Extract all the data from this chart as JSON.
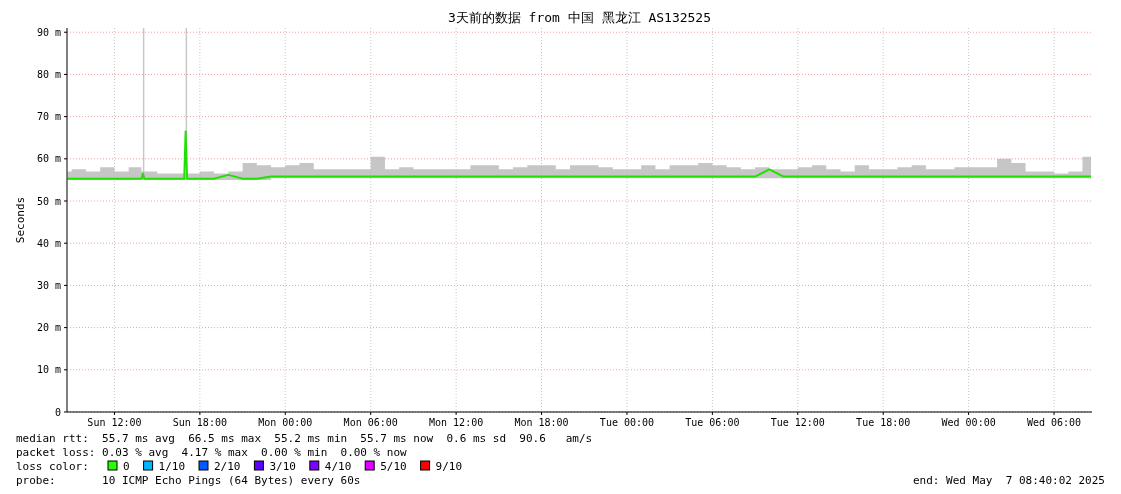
{
  "chart_data": {
    "type": "line",
    "title": "3天前的数据 from 中国 黑龙江 AS132525",
    "ylabel": "Seconds",
    "annotations": [
      "median rtt:  55.7 ms avg  66.5 ms max  55.2 ms min  55.7 ms now  0.6 ms sd  90.6   am/s",
      "packet loss: 0.03 % avg  4.17 % max  0.00 % min  0.00 % now",
      "loss color:",
      "0",
      "1/10",
      "2/10",
      "3/10",
      "4/10",
      "5/10",
      "9/10",
      "probe:       10 ICMP Echo Pings (64 Bytes) every 60s",
      "end: Wed May  7 08:40:02 2025"
    ],
    "x": [
      "2025-05-04T08:42",
      "2025-05-04T09:00",
      "2025-05-04T10:00",
      "2025-05-04T11:00",
      "2025-05-04T12:00",
      "2025-05-04T13:00",
      "2025-05-04T13:54",
      "2025-05-04T14:00",
      "2025-05-04T14:06",
      "2025-05-04T15:00",
      "2025-05-04T16:00",
      "2025-05-04T16:54",
      "2025-05-04T17:00",
      "2025-05-04T17:06",
      "2025-05-04T18:00",
      "2025-05-04T19:00",
      "2025-05-04T20:00",
      "2025-05-04T21:00",
      "2025-05-04T22:00",
      "2025-05-04T23:00",
      "2025-05-05T00:00",
      "2025-05-05T01:00",
      "2025-05-05T02:00",
      "2025-05-05T03:00",
      "2025-05-05T04:00",
      "2025-05-05T05:00",
      "2025-05-05T06:00",
      "2025-05-05T07:00",
      "2025-05-05T08:00",
      "2025-05-05T09:00",
      "2025-05-05T10:00",
      "2025-05-05T11:00",
      "2025-05-05T12:00",
      "2025-05-05T13:00",
      "2025-05-05T14:00",
      "2025-05-05T15:00",
      "2025-05-05T16:00",
      "2025-05-05T17:00",
      "2025-05-05T18:00",
      "2025-05-05T19:00",
      "2025-05-05T20:00",
      "2025-05-05T21:00",
      "2025-05-05T22:00",
      "2025-05-05T23:00",
      "2025-05-06T00:00",
      "2025-05-06T01:00",
      "2025-05-06T02:00",
      "2025-05-06T03:00",
      "2025-05-06T04:00",
      "2025-05-06T05:00",
      "2025-05-06T06:00",
      "2025-05-06T07:00",
      "2025-05-06T08:00",
      "2025-05-06T09:00",
      "2025-05-06T10:00",
      "2025-05-06T11:00",
      "2025-05-06T12:00",
      "2025-05-06T13:00",
      "2025-05-06T14:00",
      "2025-05-06T15:00",
      "2025-05-06T16:00",
      "2025-05-06T17:00",
      "2025-05-06T18:00",
      "2025-05-06T19:00",
      "2025-05-06T20:00",
      "2025-05-06T21:00",
      "2025-05-06T22:00",
      "2025-05-06T23:00",
      "2025-05-07T00:00",
      "2025-05-07T01:00",
      "2025-05-07T02:00",
      "2025-05-07T03:00",
      "2025-05-07T04:00",
      "2025-05-07T05:00",
      "2025-05-07T06:00",
      "2025-05-07T07:00",
      "2025-05-07T08:00",
      "2025-05-07T08:36"
    ],
    "series": [
      {
        "color": "#20e000",
        "values": [
          55.3,
          55.3,
          55.3,
          55.3,
          55.3,
          55.3,
          55.3,
          56.5,
          55.3,
          55.3,
          55.3,
          55.3,
          66.5,
          55.3,
          55.3,
          55.3,
          56.2,
          55.3,
          55.3,
          55.8,
          55.8,
          55.8,
          55.8,
          55.8,
          55.8,
          55.8,
          55.8,
          55.8,
          55.8,
          55.8,
          55.8,
          55.8,
          55.8,
          55.8,
          55.8,
          55.8,
          55.8,
          55.8,
          55.8,
          55.8,
          55.8,
          55.8,
          55.8,
          55.8,
          55.8,
          55.8,
          55.8,
          55.8,
          55.8,
          55.8,
          55.8,
          55.8,
          55.8,
          55.8,
          57.5,
          55.8,
          55.8,
          55.8,
          55.8,
          55.8,
          55.8,
          55.8,
          55.8,
          55.8,
          55.8,
          55.8,
          55.8,
          55.8,
          55.8,
          55.8,
          55.8,
          55.8,
          55.8,
          55.8,
          55.8,
          55.8,
          55.8,
          55.8
        ],
        "lower": [
          55,
          55,
          55,
          55,
          55,
          55,
          55,
          55,
          55,
          55,
          55,
          55,
          55,
          55,
          55,
          55,
          55,
          55,
          55,
          55.4,
          55.4,
          55.4,
          55.4,
          55.4,
          55.4,
          55.4,
          55.4,
          55.4,
          55.4,
          55.4,
          55.4,
          55.4,
          55.4,
          55.4,
          55.4,
          55.4,
          55.4,
          55.4,
          55.4,
          55.4,
          55.4,
          55.4,
          55.4,
          55.4,
          55.4,
          55.4,
          55.4,
          55.4,
          55.4,
          55.4,
          55.4,
          55.4,
          55.4,
          55.4,
          55.4,
          55.4,
          55.4,
          55.4,
          55.4,
          55.4,
          55.4,
          55.4,
          55.4,
          55.4,
          55.4,
          55.4,
          55.4,
          55.4,
          55.4,
          55.4,
          55.4,
          55.4,
          55.4,
          55.4,
          55.4,
          55.4,
          55.4,
          55.4
        ],
        "upper": [
          57,
          57.5,
          57,
          58,
          57,
          58,
          57,
          91,
          57,
          56.5,
          56.5,
          56.5,
          91,
          56.5,
          57,
          56.5,
          57,
          59,
          58.5,
          58,
          58.5,
          59,
          57.5,
          57.5,
          57.5,
          57.5,
          60.5,
          57.5,
          58,
          57.5,
          57.5,
          57.5,
          57.5,
          58.5,
          58.5,
          57.5,
          58,
          58.5,
          58.5,
          57.5,
          58.5,
          58.5,
          58,
          57.5,
          57.5,
          58.5,
          57.5,
          58.5,
          58.5,
          59,
          58.5,
          58,
          57.5,
          58,
          57.5,
          57.5,
          58,
          58.5,
          57.5,
          57,
          58.5,
          57.5,
          57.5,
          58,
          58.5,
          57.5,
          57.5,
          58,
          58,
          58,
          60,
          59,
          57,
          57,
          56.5,
          57,
          60.5,
          57
        ]
      }
    ],
    "xlim": [
      "2025-05-04T08:40",
      "2025-05-07T08:40"
    ],
    "ylim": [
      0,
      91
    ],
    "xticks": [
      {
        "value": "2025-05-04T12:00",
        "label": "Sun 12:00"
      },
      {
        "value": "2025-05-04T18:00",
        "label": "Sun 18:00"
      },
      {
        "value": "2025-05-05T00:00",
        "label": "Mon 00:00"
      },
      {
        "value": "2025-05-05T06:00",
        "label": "Mon 06:00"
      },
      {
        "value": "2025-05-05T12:00",
        "label": "Mon 12:00"
      },
      {
        "value": "2025-05-05T18:00",
        "label": "Mon 18:00"
      },
      {
        "value": "2025-05-06T00:00",
        "label": "Tue 00:00"
      },
      {
        "value": "2025-05-06T06:00",
        "label": "Tue 06:00"
      },
      {
        "value": "2025-05-06T12:00",
        "label": "Tue 12:00"
      },
      {
        "value": "2025-05-06T18:00",
        "label": "Tue 18:00"
      },
      {
        "value": "2025-05-07T00:00",
        "label": "Wed 00:00"
      },
      {
        "value": "2025-05-07T06:00",
        "label": "Wed 06:00"
      }
    ],
    "yticks": [
      0,
      {
        "value": 10,
        "label": "10 m"
      },
      {
        "value": 20,
        "label": "20 m"
      },
      {
        "value": 30,
        "label": "30 m"
      },
      {
        "value": 40,
        "label": "40 m"
      },
      {
        "value": 50,
        "label": "50 m"
      },
      {
        "value": 60,
        "label": "60 m"
      },
      {
        "value": 70,
        "label": "70 m"
      },
      {
        "value": 80,
        "label": "80 m"
      },
      {
        "value": 90,
        "label": "90 m"
      }
    ],
    "grid": true
  }
}
